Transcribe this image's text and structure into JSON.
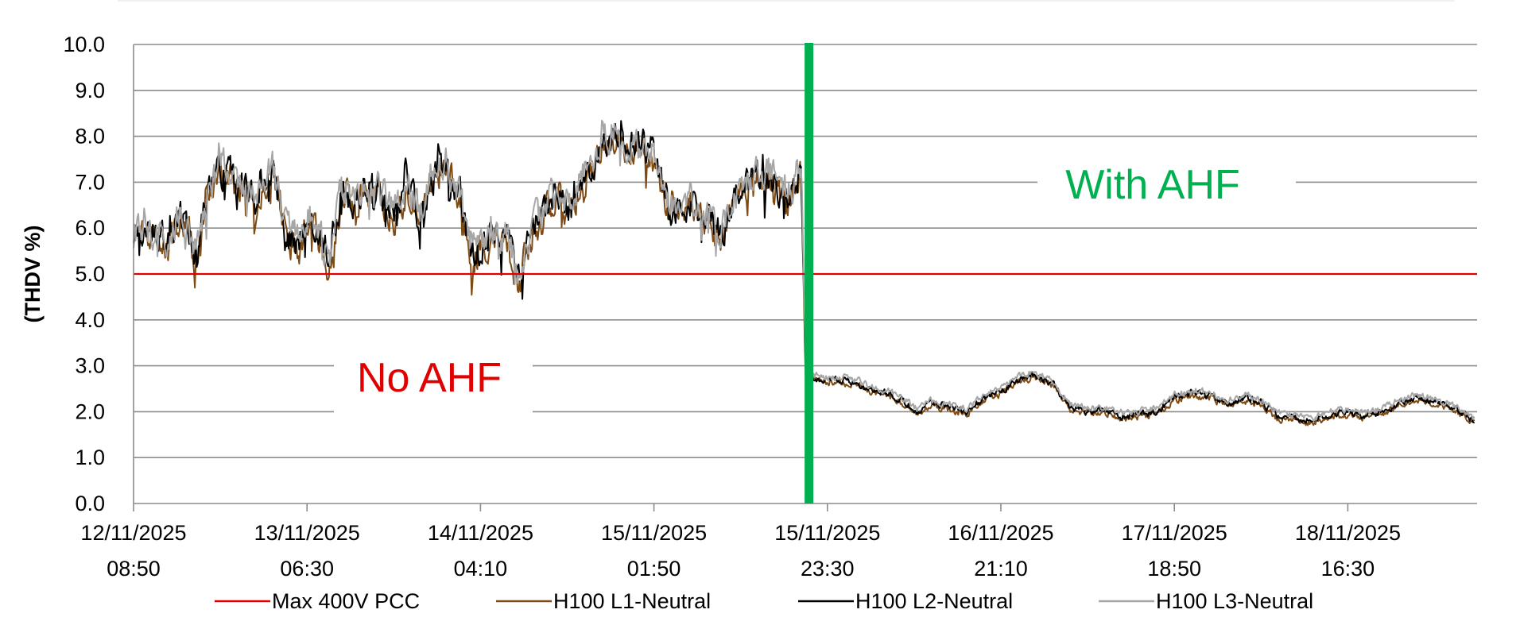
{
  "chart_data": {
    "type": "line",
    "title": "",
    "xlabel": "",
    "ylabel": "(THDV %)",
    "ylim": [
      0,
      10
    ],
    "yticks": [
      "0.0",
      "1.0",
      "2.0",
      "3.0",
      "4.0",
      "5.0",
      "6.0",
      "7.0",
      "8.0",
      "9.0",
      "10.0"
    ],
    "grid": "horizontal",
    "legend_position": "bottom",
    "xticks": [
      {
        "date": "12/11/2025",
        "time": "08:50"
      },
      {
        "date": "13/11/2025",
        "time": "06:30"
      },
      {
        "date": "14/11/2025",
        "time": "04:10"
      },
      {
        "date": "15/11/2025",
        "time": "01:50"
      },
      {
        "date": "15/11/2025",
        "time": "23:30"
      },
      {
        "date": "16/11/2025",
        "time": "21:10"
      },
      {
        "date": "17/11/2025",
        "time": "18:50"
      },
      {
        "date": "18/11/2025",
        "time": "16:30"
      }
    ],
    "x_end_fraction_of_ticks": 7.73,
    "ahf_switch_at_tick": 3.88,
    "limit_line": {
      "name": "Max 400V PCC",
      "value": 5.0,
      "color": "#e00000"
    },
    "annotations": [
      {
        "text": "No AHF",
        "color": "#e00000"
      },
      {
        "text": "With AHF",
        "color": "#00b050"
      }
    ],
    "series": [
      {
        "name": "H100 L1-Neutral",
        "color": "#7f4b14"
      },
      {
        "name": "H100 L2-Neutral",
        "color": "#000000"
      },
      {
        "name": "H100 L3-Neutral",
        "color": "#a6a6a6"
      }
    ],
    "anchor_profile": {
      "x_in_tick_units": [
        0.0,
        0.1,
        0.2,
        0.28,
        0.35,
        0.42,
        0.5,
        0.6,
        0.7,
        0.8,
        0.88,
        0.95,
        1.0,
        1.05,
        1.12,
        1.2,
        1.28,
        1.35,
        1.42,
        1.5,
        1.58,
        1.65,
        1.72,
        1.8,
        1.88,
        1.95,
        2.05,
        2.15,
        2.22,
        2.3,
        2.38,
        2.45,
        2.52,
        2.6,
        2.7,
        2.78,
        2.85,
        2.9,
        3.0,
        3.1,
        3.2,
        3.3,
        3.4,
        3.5,
        3.6,
        3.7,
        3.78,
        3.85,
        3.875,
        3.9,
        3.96,
        4.05,
        4.15,
        4.25,
        4.35,
        4.45,
        4.52,
        4.6,
        4.7,
        4.8,
        4.9,
        5.0,
        5.1,
        5.2,
        5.3,
        5.4,
        5.5,
        5.6,
        5.7,
        5.8,
        5.9,
        6.0,
        6.1,
        6.2,
        6.3,
        6.4,
        6.5,
        6.6,
        6.7,
        6.8,
        6.9,
        7.0,
        7.1,
        7.2,
        7.3,
        7.4,
        7.5,
        7.6,
        7.73
      ],
      "y_values": [
        5.8,
        5.9,
        5.7,
        6.3,
        5.4,
        6.6,
        7.3,
        7.0,
        6.6,
        7.4,
        5.9,
        5.6,
        6.2,
        6.0,
        5.3,
        6.8,
        6.6,
        7.0,
        6.7,
        6.4,
        6.9,
        6.3,
        7.1,
        7.4,
        6.6,
        5.4,
        5.8,
        5.7,
        4.9,
        6.0,
        6.4,
        6.8,
        6.3,
        7.2,
        7.7,
        8.0,
        7.7,
        7.9,
        7.6,
        6.3,
        6.6,
        6.2,
        5.9,
        6.9,
        7.2,
        7.0,
        6.6,
        7.4,
        2.8,
        2.75,
        2.7,
        2.7,
        2.65,
        2.5,
        2.4,
        2.2,
        2.0,
        2.2,
        2.1,
        2.0,
        2.3,
        2.45,
        2.7,
        2.8,
        2.6,
        2.1,
        2.0,
        2.05,
        1.9,
        1.95,
        2.0,
        2.3,
        2.4,
        2.35,
        2.2,
        2.3,
        2.2,
        1.9,
        1.85,
        1.8,
        1.95,
        2.0,
        1.9,
        2.0,
        2.2,
        2.3,
        2.2,
        2.1,
        1.8
      ]
    }
  }
}
